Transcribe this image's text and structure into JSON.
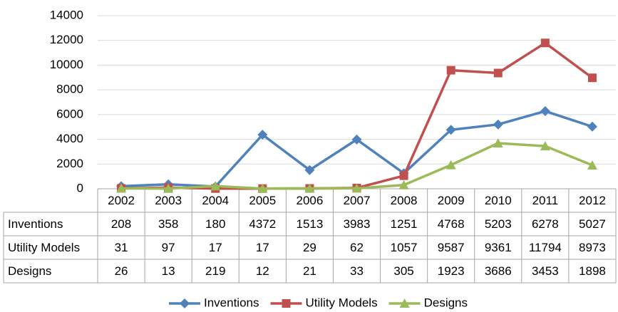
{
  "chart_data": {
    "type": "line",
    "categories": [
      "2002",
      "2003",
      "2004",
      "2005",
      "2006",
      "2007",
      "2008",
      "2009",
      "2010",
      "2011",
      "2012"
    ],
    "series": [
      {
        "name": "Inventions",
        "color": "#4f81bd",
        "marker": "diamond",
        "values": [
          208,
          358,
          180,
          4372,
          1513,
          3983,
          1251,
          4768,
          5203,
          6278,
          5027
        ]
      },
      {
        "name": "Utility Models",
        "color": "#c0504d",
        "marker": "square",
        "values": [
          31,
          97,
          17,
          17,
          29,
          62,
          1057,
          9587,
          9361,
          11794,
          8973
        ]
      },
      {
        "name": "Designs",
        "color": "#9bbb59",
        "marker": "triangle",
        "values": [
          26,
          13,
          219,
          12,
          21,
          33,
          305,
          1923,
          3686,
          3453,
          1898
        ]
      }
    ],
    "ylim": [
      0,
      14000
    ],
    "yticks": [
      0,
      2000,
      4000,
      6000,
      8000,
      10000,
      12000,
      14000
    ],
    "grid": true,
    "data_table": true,
    "legend": "bottom"
  }
}
